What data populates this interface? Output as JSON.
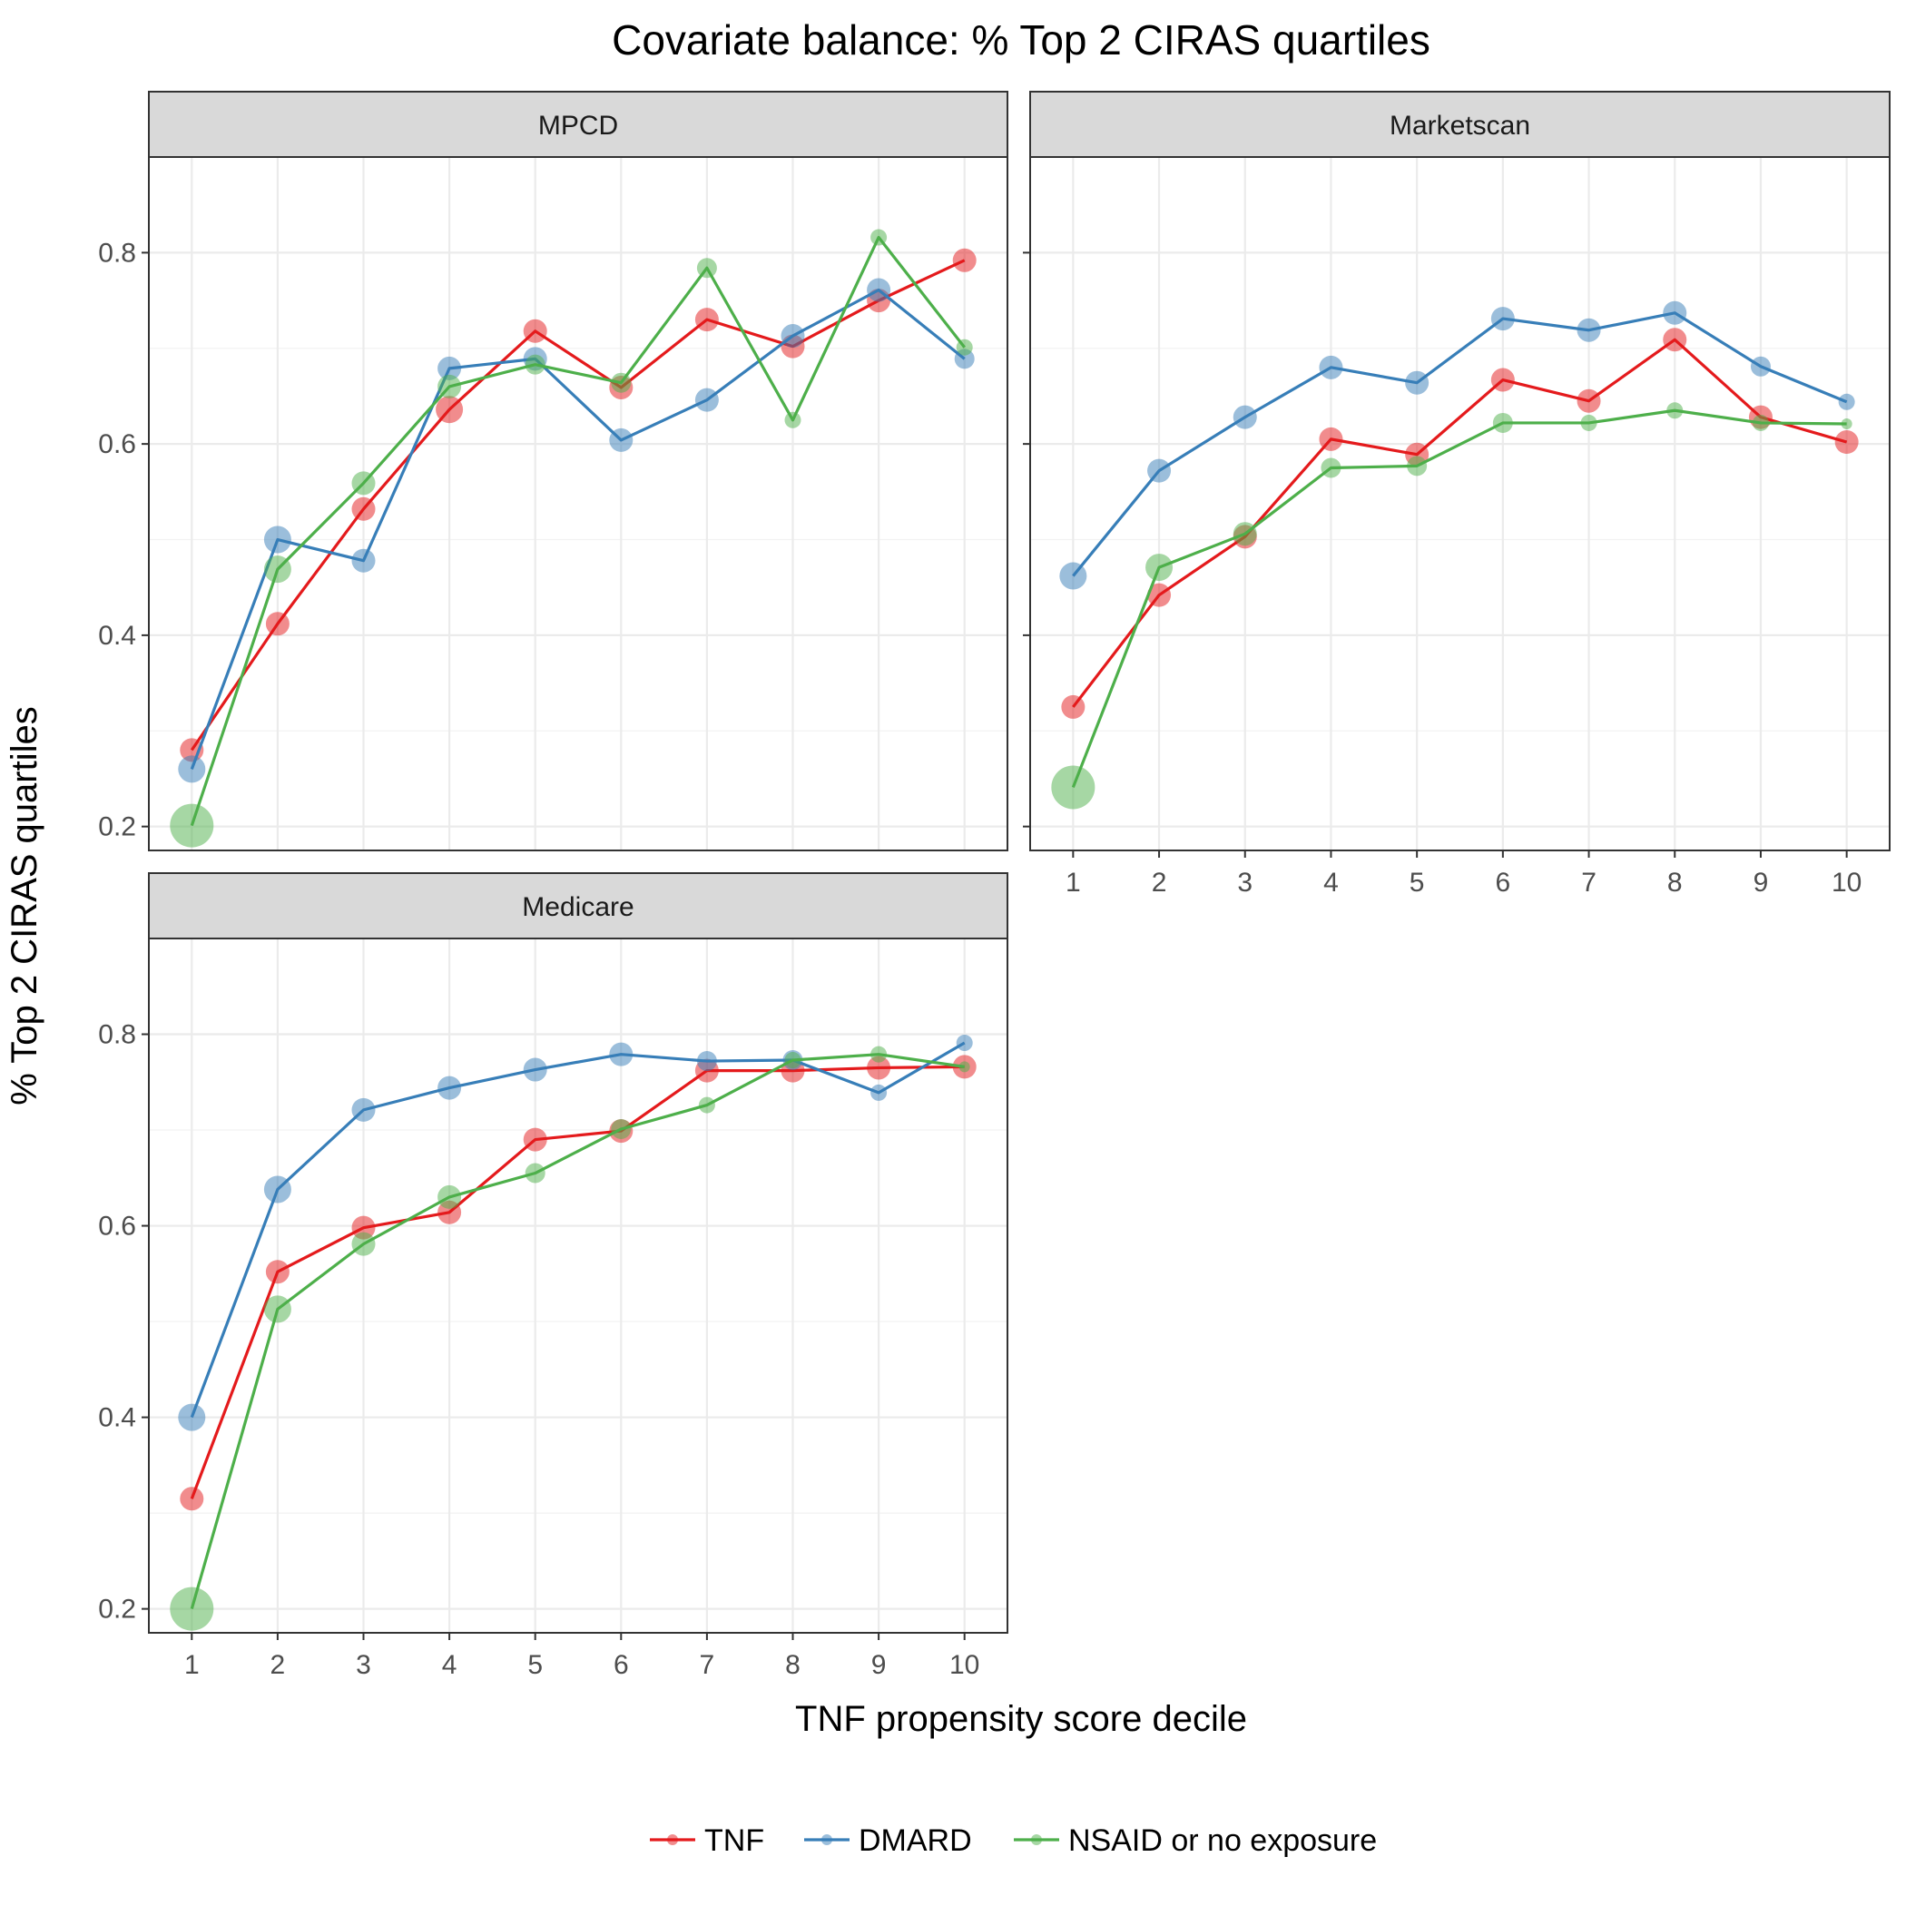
{
  "chart_data": {
    "type": "line",
    "title": "Covariate balance: % Top 2 CIRAS quartiles",
    "xlabel": "TNF propensity score decile",
    "ylabel": "% Top 2 CIRAS quartiles",
    "x": [
      1,
      2,
      3,
      4,
      5,
      6,
      7,
      8,
      9,
      10
    ],
    "ylim": [
      0.175,
      0.9
    ],
    "yticks": [
      0.2,
      0.4,
      0.6,
      0.8
    ],
    "ytick_labels": [
      "0.2",
      "0.4",
      "0.6",
      "0.8"
    ],
    "grid": true,
    "legend_position": "bottom",
    "colors": {
      "TNF": "#e41a1c",
      "DMARD": "#377eb8",
      "NSAID or no exposure": "#4daf4a"
    },
    "panels": [
      {
        "name": "MPCD",
        "series": [
          {
            "name": "TNF",
            "values": [
              0.28,
              0.412,
              0.532,
              0.636,
              0.718,
              0.659,
              0.73,
              0.702,
              0.75,
              0.792
            ],
            "sizes": [
              3,
              3,
              3,
              4,
              3,
              3,
              3,
              3,
              3,
              3
            ]
          },
          {
            "name": "DMARD",
            "values": [
              0.26,
              0.5,
              0.478,
              0.679,
              0.689,
              0.604,
              0.646,
              0.713,
              0.761,
              0.689
            ],
            "sizes": [
              4,
              4,
              3,
              3,
              3,
              3,
              3,
              3,
              3,
              2
            ]
          },
          {
            "name": "NSAID or no exposure",
            "values": [
              0.201,
              0.469,
              0.559,
              0.66,
              0.683,
              0.664,
              0.784,
              0.625,
              0.816,
              0.701
            ],
            "sizes": [
              7,
              4,
              3,
              3,
              2,
              2,
              2,
              1,
              1,
              1
            ]
          }
        ]
      },
      {
        "name": "Marketscan",
        "series": [
          {
            "name": "TNF",
            "values": [
              0.325,
              0.442,
              0.503,
              0.605,
              0.589,
              0.667,
              0.645,
              0.709,
              0.628,
              0.602
            ],
            "sizes": [
              3,
              3,
              3,
              3,
              3,
              3,
              3,
              3,
              3,
              3
            ]
          },
          {
            "name": "DMARD",
            "values": [
              0.462,
              0.572,
              0.628,
              0.68,
              0.664,
              0.731,
              0.719,
              0.737,
              0.681,
              0.644
            ],
            "sizes": [
              4,
              3,
              3,
              3,
              3,
              3,
              3,
              3,
              2,
              1
            ]
          },
          {
            "name": "NSAID or no exposure",
            "values": [
              0.241,
              0.471,
              0.506,
              0.575,
              0.577,
              0.622,
              0.622,
              0.635,
              0.622,
              0.621
            ],
            "sizes": [
              7,
              4,
              3,
              2,
              2,
              2,
              1,
              1,
              1,
              0
            ]
          }
        ]
      },
      {
        "name": "Medicare",
        "series": [
          {
            "name": "TNF",
            "values": [
              0.315,
              0.552,
              0.598,
              0.614,
              0.69,
              0.699,
              0.762,
              0.762,
              0.765,
              0.766
            ],
            "sizes": [
              3,
              3,
              3,
              3,
              3,
              3,
              3,
              3,
              3,
              3
            ]
          },
          {
            "name": "DMARD",
            "values": [
              0.4,
              0.638,
              0.721,
              0.744,
              0.763,
              0.779,
              0.772,
              0.773,
              0.739,
              0.791
            ],
            "sizes": [
              4,
              4,
              3,
              3,
              3,
              3,
              2,
              2,
              1,
              1
            ]
          },
          {
            "name": "NSAID or no exposure",
            "values": [
              0.2,
              0.513,
              0.581,
              0.63,
              0.655,
              0.701,
              0.726,
              0.773,
              0.779,
              0.766
            ],
            "sizes": [
              7,
              4,
              3,
              3,
              2,
              2,
              1,
              1,
              1,
              0
            ]
          }
        ]
      }
    ],
    "legend": [
      "TNF",
      "DMARD",
      "NSAID or no exposure"
    ]
  }
}
